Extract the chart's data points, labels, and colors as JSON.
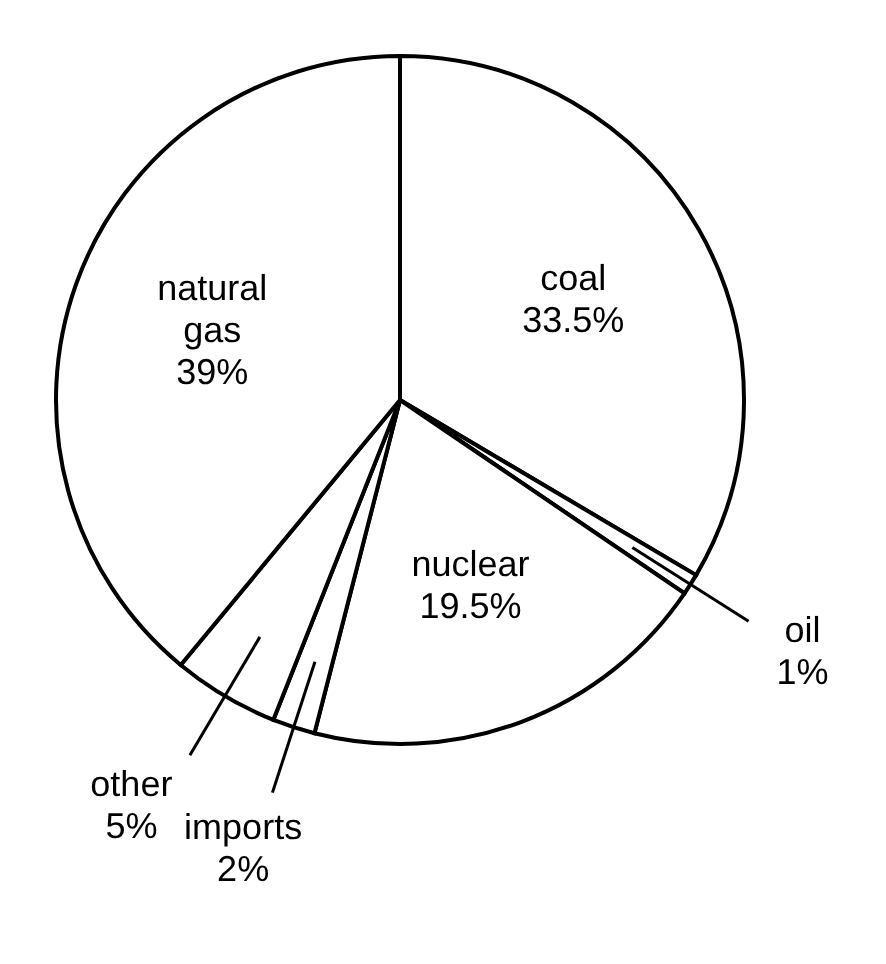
{
  "chart_data": {
    "type": "pie",
    "categories": [
      "coal",
      "oil",
      "nuclear",
      "imports",
      "other",
      "natural\ngas"
    ],
    "values": [
      33.5,
      1,
      19.5,
      2,
      5,
      39
    ],
    "colors": [
      "#ffffff",
      "#ffffff",
      "#ffffff",
      "#ffffff",
      "#ffffff",
      "#ffffff"
    ],
    "value_labels": [
      "33.5%",
      "1%",
      "19.5%",
      "2%",
      "5%",
      "39%"
    ]
  }
}
